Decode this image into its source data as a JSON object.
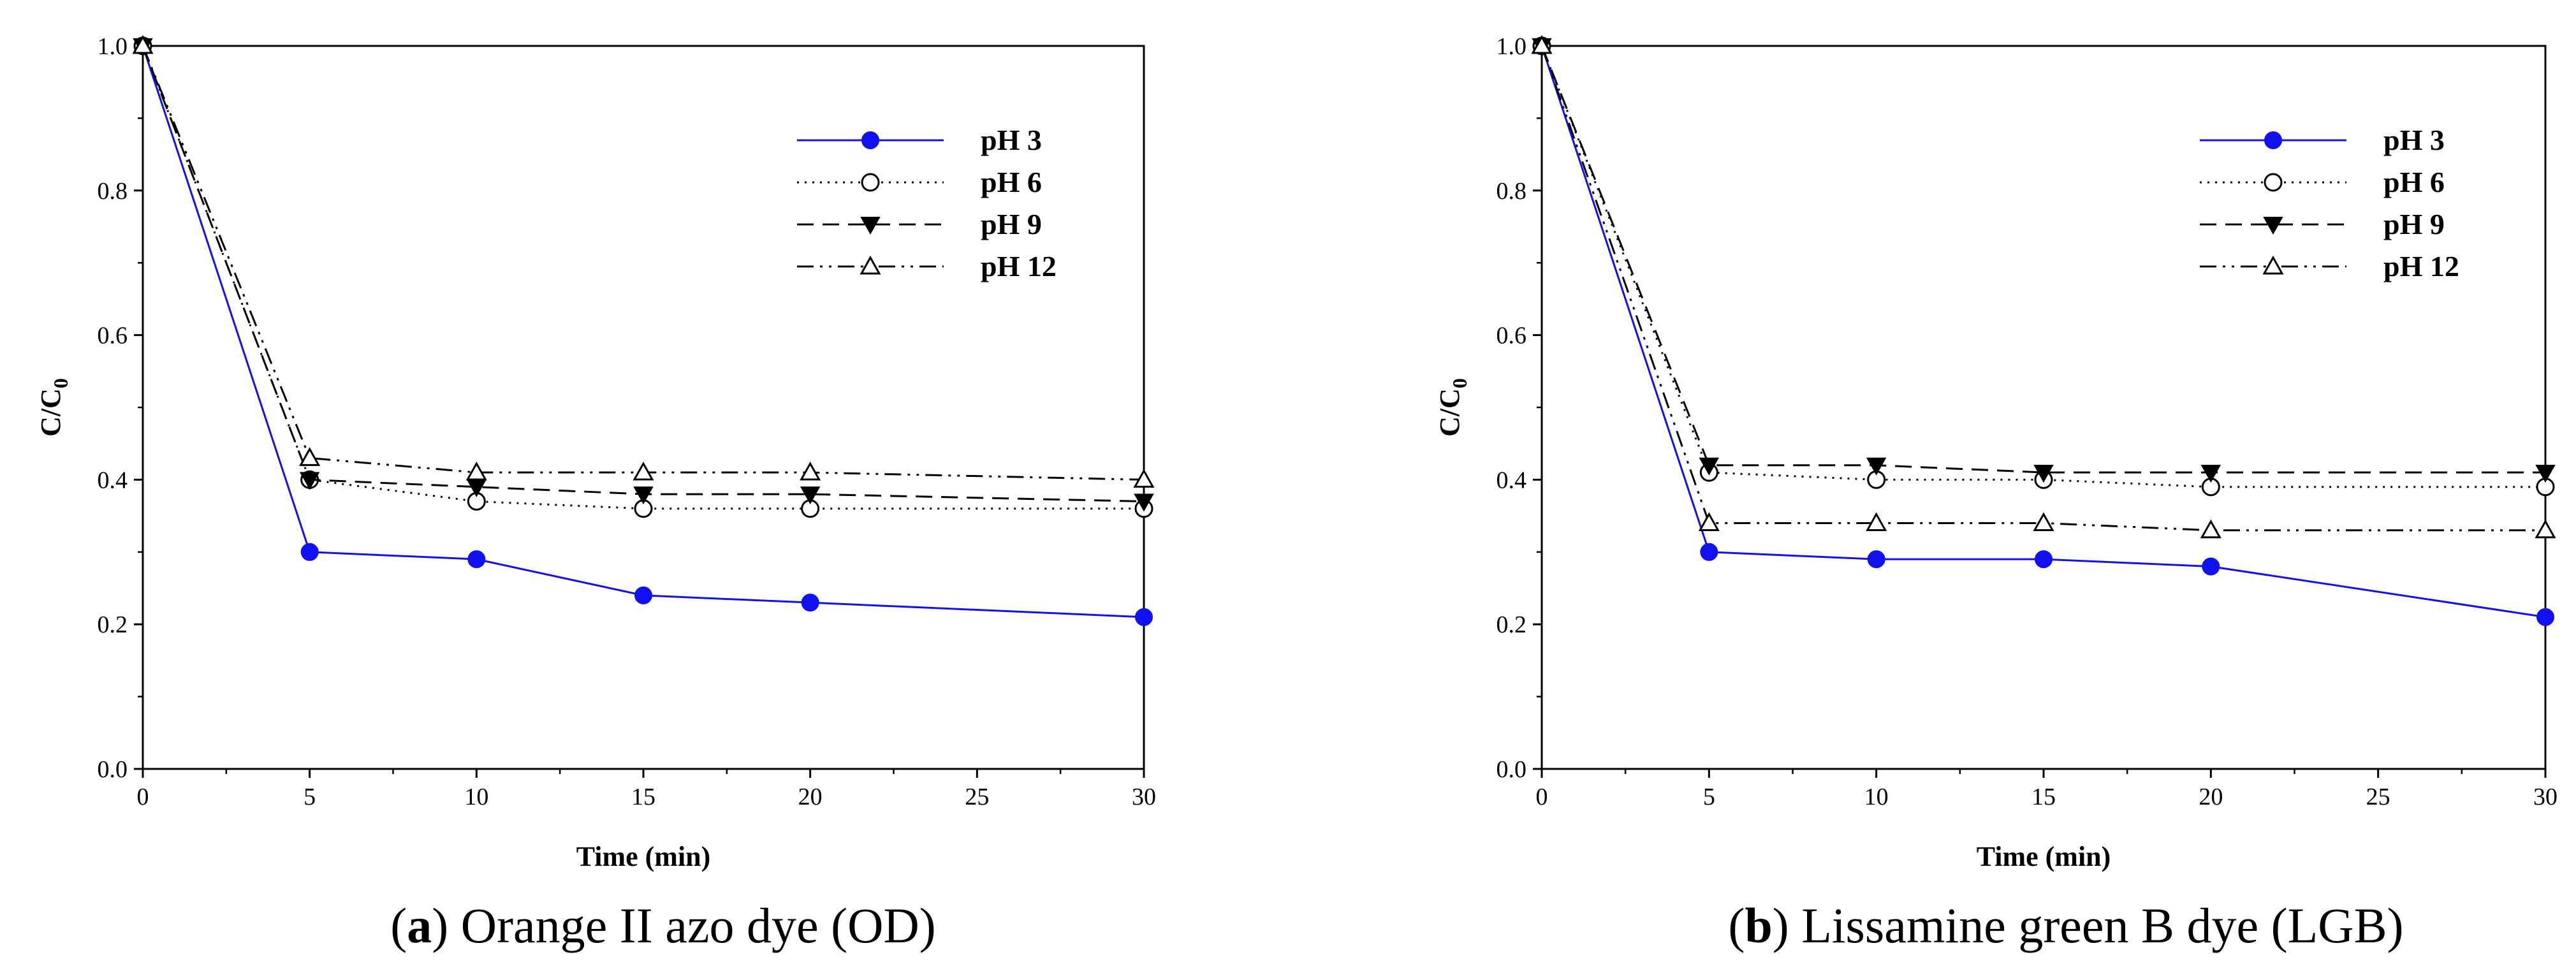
{
  "chart_data": [
    {
      "type": "line",
      "caption_letter": "a",
      "caption_rest": ") Orange II azo dye (OD)",
      "caption_open": "(",
      "xlabel": "Time (min)",
      "ylabel_main": "C/C",
      "ylabel_sub": "0",
      "xlim": [
        0,
        30
      ],
      "ylim": [
        0.0,
        1.0
      ],
      "xticks": [
        "0",
        "5",
        "10",
        "15",
        "20",
        "25",
        "30"
      ],
      "yticks": [
        "0.0",
        "0.2",
        "0.4",
        "0.6",
        "0.8",
        "1.0"
      ],
      "legend_position": "top-right",
      "series": [
        {
          "name": "pH 3",
          "color": "#1010f0",
          "marker": "filled-circle",
          "line": "solid",
          "x": [
            0,
            5,
            10,
            15,
            20,
            30
          ],
          "values": [
            1.0,
            0.3,
            0.29,
            0.24,
            0.23,
            0.21
          ]
        },
        {
          "name": "pH 6",
          "color": "#000000",
          "marker": "open-circle",
          "line": "dotted",
          "x": [
            0,
            5,
            10,
            15,
            20,
            30
          ],
          "values": [
            1.0,
            0.4,
            0.37,
            0.36,
            0.36,
            0.36
          ]
        },
        {
          "name": "pH 9",
          "color": "#000000",
          "marker": "filled-triangle-down",
          "line": "dashed",
          "x": [
            0,
            5,
            10,
            15,
            20,
            30
          ],
          "values": [
            1.0,
            0.4,
            0.39,
            0.38,
            0.38,
            0.37
          ]
        },
        {
          "name": "pH 12",
          "color": "#000000",
          "marker": "open-triangle-up",
          "line": "dash-dot-dot",
          "x": [
            0,
            5,
            10,
            15,
            20,
            30
          ],
          "values": [
            1.0,
            0.43,
            0.41,
            0.41,
            0.41,
            0.4
          ]
        }
      ]
    },
    {
      "type": "line",
      "caption_letter": "b",
      "caption_rest": ") Lissamine green B dye (LGB)",
      "caption_open": "(",
      "xlabel": "Time (min)",
      "ylabel_main": "C/C",
      "ylabel_sub": "0",
      "xlim": [
        0,
        30
      ],
      "ylim": [
        0.0,
        1.0
      ],
      "xticks": [
        "0",
        "5",
        "10",
        "15",
        "20",
        "25",
        "30"
      ],
      "yticks": [
        "0.0",
        "0.2",
        "0.4",
        "0.6",
        "0.8",
        "1.0"
      ],
      "legend_position": "top-right",
      "series": [
        {
          "name": "pH 3",
          "color": "#1010f0",
          "marker": "filled-circle",
          "line": "solid",
          "x": [
            0,
            5,
            10,
            15,
            20,
            30
          ],
          "values": [
            1.0,
            0.3,
            0.29,
            0.29,
            0.28,
            0.21
          ]
        },
        {
          "name": "pH 6",
          "color": "#000000",
          "marker": "open-circle",
          "line": "dotted",
          "x": [
            0,
            5,
            10,
            15,
            20,
            30
          ],
          "values": [
            1.0,
            0.41,
            0.4,
            0.4,
            0.39,
            0.39
          ]
        },
        {
          "name": "pH 9",
          "color": "#000000",
          "marker": "filled-triangle-down",
          "line": "dashed",
          "x": [
            0,
            5,
            10,
            15,
            20,
            30
          ],
          "values": [
            1.0,
            0.42,
            0.42,
            0.41,
            0.41,
            0.41
          ]
        },
        {
          "name": "pH 12",
          "color": "#000000",
          "marker": "open-triangle-up",
          "line": "dash-dot-dot",
          "x": [
            0,
            5,
            10,
            15,
            20,
            30
          ],
          "values": [
            1.0,
            0.34,
            0.34,
            0.34,
            0.33,
            0.33
          ]
        }
      ]
    }
  ]
}
